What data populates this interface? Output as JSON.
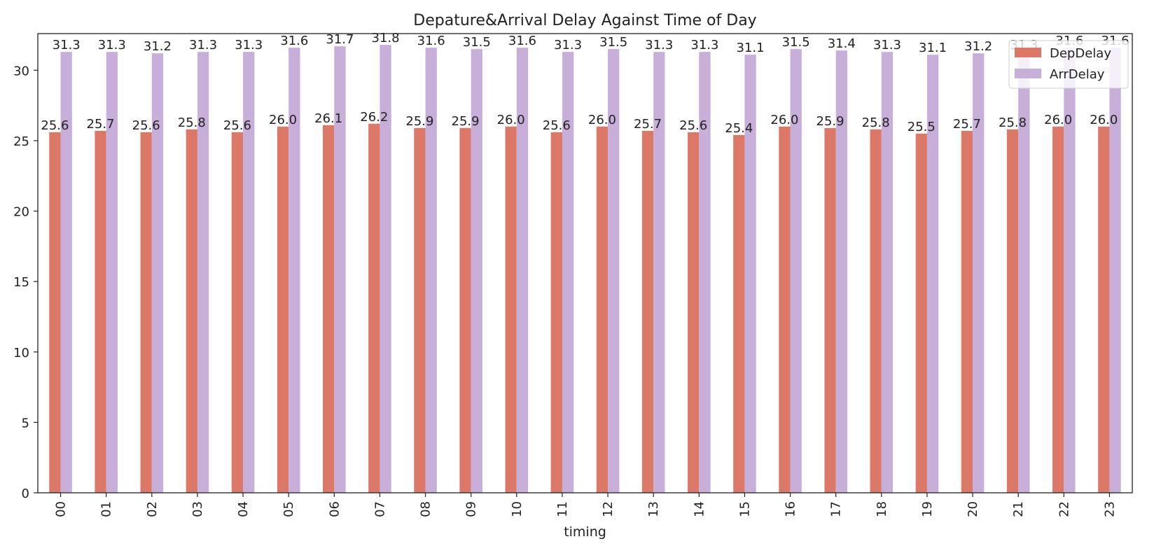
{
  "chart_data": {
    "type": "bar",
    "title": "Depature&Arrival Delay Against Time of Day",
    "xlabel": "timing",
    "ylabel": "",
    "ylim": [
      0,
      32.6
    ],
    "yticks": [
      0,
      5,
      10,
      15,
      20,
      25,
      30
    ],
    "grid": false,
    "legend_position": "top-right",
    "categories": [
      "00",
      "01",
      "02",
      "03",
      "04",
      "05",
      "06",
      "07",
      "08",
      "09",
      "10",
      "11",
      "12",
      "13",
      "14",
      "15",
      "16",
      "17",
      "18",
      "19",
      "20",
      "21",
      "22",
      "23"
    ],
    "series": [
      {
        "name": "DepDelay",
        "color": "#db7868",
        "values": [
          25.6,
          25.7,
          25.6,
          25.8,
          25.6,
          26.0,
          26.1,
          26.2,
          25.9,
          25.9,
          26.0,
          25.6,
          26.0,
          25.7,
          25.6,
          25.4,
          26.0,
          25.9,
          25.8,
          25.5,
          25.7,
          25.8,
          26.0,
          26.0
        ]
      },
      {
        "name": "ArrDelay",
        "color": "#c8afda",
        "values": [
          31.3,
          31.3,
          31.2,
          31.3,
          31.3,
          31.6,
          31.7,
          31.8,
          31.6,
          31.5,
          31.6,
          31.3,
          31.5,
          31.3,
          31.3,
          31.1,
          31.5,
          31.4,
          31.3,
          31.1,
          31.2,
          31.3,
          31.6,
          31.6
        ]
      }
    ]
  }
}
